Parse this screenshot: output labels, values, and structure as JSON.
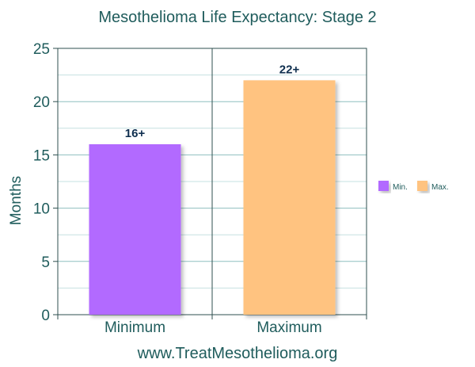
{
  "chart_data": {
    "type": "bar",
    "title": "Mesothelioma Life Expectancy: Stage 2",
    "ylabel": "Months",
    "xlabel": "",
    "ylim": [
      0,
      25
    ],
    "yticks": [
      0,
      5,
      10,
      15,
      20,
      25
    ],
    "categories": [
      "Minimum",
      "Maximum"
    ],
    "values": [
      16,
      22
    ],
    "data_labels": [
      "16+",
      "22+"
    ],
    "colors": [
      "#b26bff",
      "#ffc380"
    ],
    "legend": [
      {
        "label": "Min.",
        "color": "#b26bff"
      },
      {
        "label": "Max.",
        "color": "#ffc380"
      }
    ],
    "legend_position": "right",
    "grid": true
  },
  "footer": "www.TreatMesothelioma.org"
}
